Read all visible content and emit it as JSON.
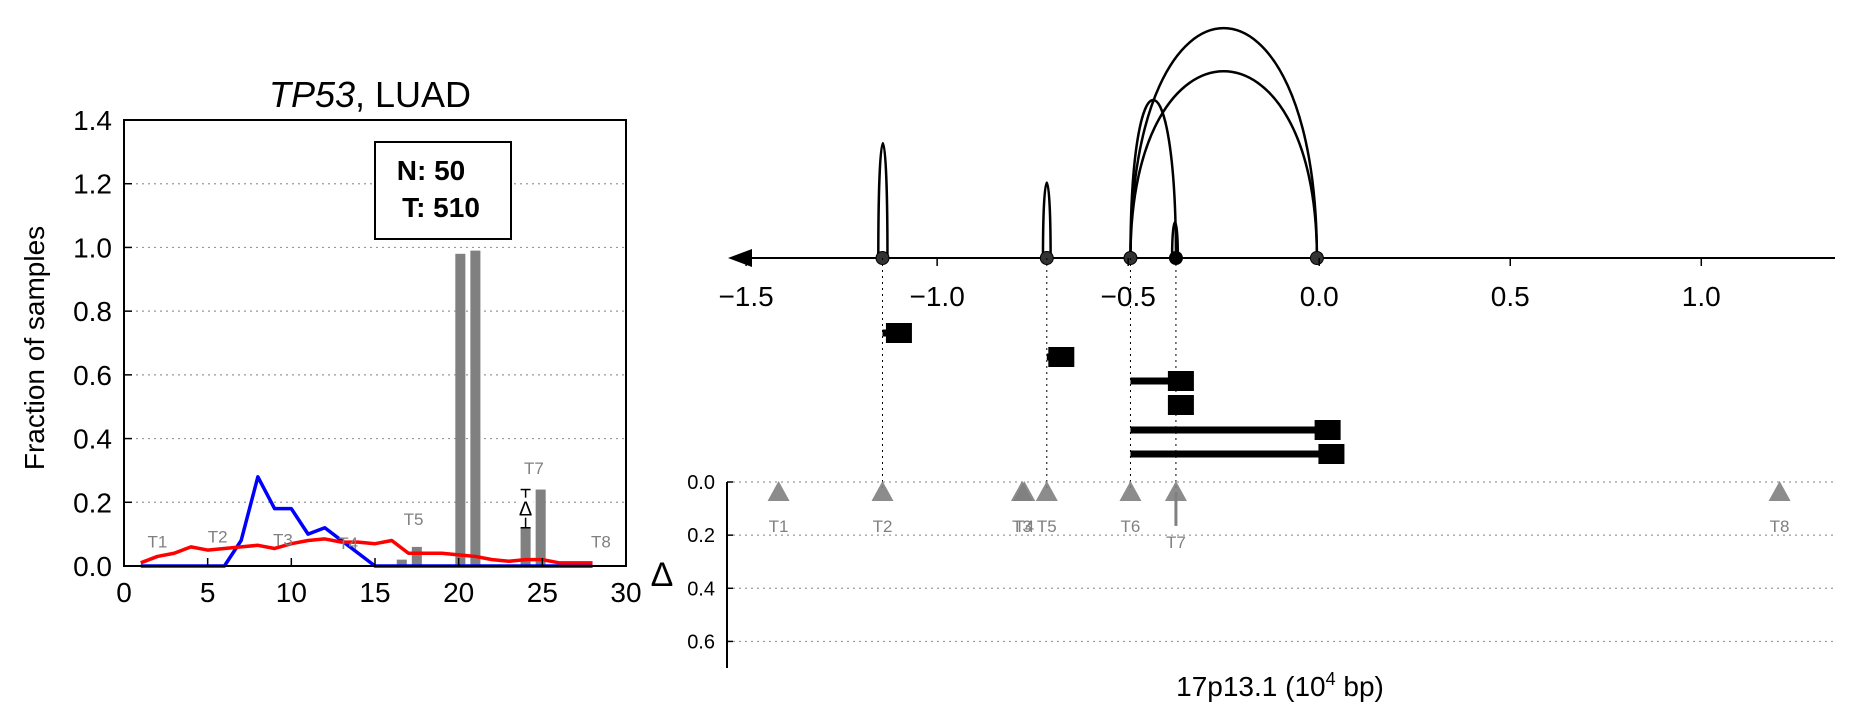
{
  "colors": {
    "normal_line": "#0000ff",
    "tumor_line": "#ff0000",
    "bar": "#808080",
    "marker": "#808080",
    "axis": "#000000",
    "grid": "#999999"
  },
  "chart_data": [
    {
      "type": "bar",
      "title_gene": "TP53",
      "title_rest": ", LUAD",
      "xlabel": "",
      "ylabel": "Fraction of samples",
      "xlim": [
        0,
        30
      ],
      "ylim": [
        0,
        1.4
      ],
      "xticks": [
        0,
        5,
        10,
        15,
        20,
        25,
        30
      ],
      "yticks": [
        "0.0",
        "0.2",
        "0.4",
        "0.6",
        "0.8",
        "1.0",
        "1.2",
        "1.4"
      ],
      "grid": "y",
      "legend_box": [
        "N: 50",
        "T: 510"
      ],
      "bars": [
        {
          "x": 16.6,
          "value": 0.02
        },
        {
          "x": 17.5,
          "value": 0.06
        },
        {
          "x": 20.1,
          "value": 0.98
        },
        {
          "x": 21.0,
          "value": 0.99
        },
        {
          "x": 24.0,
          "value": 0.12
        },
        {
          "x": 24.9,
          "value": 0.24
        }
      ],
      "series": [
        {
          "name": "N",
          "x": [
            1,
            2,
            3,
            4,
            5,
            6,
            7,
            8,
            9,
            10,
            11,
            12,
            13,
            14,
            15,
            16,
            17,
            18,
            19,
            20,
            21,
            22,
            23,
            24,
            25,
            26,
            27,
            28
          ],
          "values": [
            0,
            0,
            0,
            0,
            0,
            0,
            0.08,
            0.28,
            0.18,
            0.18,
            0.1,
            0.12,
            0.08,
            0.04,
            0,
            0,
            0,
            0,
            0,
            0,
            0,
            0,
            0,
            0,
            0,
            0,
            0,
            0
          ]
        },
        {
          "name": "T",
          "x": [
            1,
            2,
            3,
            4,
            5,
            6,
            7,
            8,
            9,
            10,
            11,
            12,
            13,
            14,
            15,
            16,
            17,
            18,
            19,
            20,
            21,
            22,
            23,
            24,
            25,
            26,
            27,
            28
          ],
          "values": [
            0.01,
            0.03,
            0.04,
            0.06,
            0.05,
            0.055,
            0.06,
            0.065,
            0.055,
            0.07,
            0.08,
            0.085,
            0.075,
            0.075,
            0.07,
            0.08,
            0.04,
            0.04,
            0.04,
            0.035,
            0.03,
            0.02,
            0.015,
            0.02,
            0.02,
            0.01,
            0.01,
            0.01
          ]
        }
      ],
      "annotations": [
        {
          "label": "T1",
          "x": 2,
          "y": 0.04
        },
        {
          "label": "T2",
          "x": 5.6,
          "y": 0.055
        },
        {
          "label": "T3",
          "x": 9.5,
          "y": 0.045
        },
        {
          "label": "T4",
          "x": 13.4,
          "y": 0.035
        },
        {
          "label": "T5",
          "x": 17.3,
          "y": 0.11
        },
        {
          "label": "T7",
          "x": 24.5,
          "y": 0.27
        },
        {
          "label": "T8",
          "x": 28.5,
          "y": 0.04
        }
      ],
      "delta_marker": {
        "label": "Δ",
        "x": 24.0,
        "y": 0.18,
        "err_low": 0.12,
        "err_high": 0.24
      }
    },
    {
      "type": "arc",
      "xlabel_prefix": "17p13.1 (10",
      "xlabel_exp": "4",
      "xlabel_suffix": " bp)",
      "xlim": [
        -1.55,
        1.35
      ],
      "xticks": [
        "−1.5",
        "−1.0",
        "−0.5",
        "0.0",
        "0.5",
        "1.0"
      ],
      "xtick_values": [
        -1.5,
        -1.0,
        -0.5,
        0.0,
        0.5,
        1.0
      ],
      "junction_nodes": [
        -1.143,
        -0.713,
        -0.494,
        -0.375,
        -0.006
      ],
      "arcs": [
        {
          "from": -1.154,
          "to": -1.13,
          "height": 0.32
        },
        {
          "from": -0.723,
          "to": -0.703,
          "height": 0.21
        },
        {
          "from": -0.494,
          "to": -0.375,
          "height": 0.44
        },
        {
          "from": -0.494,
          "to": -0.006,
          "height": 0.64
        },
        {
          "from": -0.494,
          "to": -0.006,
          "height": 0.52
        },
        {
          "from": -0.385,
          "to": -0.37,
          "height": 0.1
        }
      ],
      "transcripts": [
        {
          "start": -1.143,
          "end": -1.115,
          "box": -1.1
        },
        {
          "start": -0.713,
          "end": -0.69,
          "box": -0.675
        },
        {
          "start": -0.494,
          "end": -0.375,
          "box": -0.362
        },
        {
          "start": -0.375,
          "end": -0.375,
          "box": -0.362
        },
        {
          "start": -0.494,
          "end": 0.0,
          "box": 0.022
        },
        {
          "start": -0.494,
          "end": 0.01,
          "box": 0.032
        }
      ],
      "delta_label": "Δ",
      "delta_yticks": [
        "0.0",
        "0.2",
        "0.4",
        "0.6"
      ],
      "delta_ylim": [
        0,
        0.7
      ],
      "markers": [
        {
          "label": "T1",
          "x": -1.415,
          "delta": 0.0
        },
        {
          "label": "T2",
          "x": -1.143,
          "delta": 0.0
        },
        {
          "label": "T3",
          "x": -0.778,
          "delta": 0.0
        },
        {
          "label": "T4",
          "x": -0.772,
          "delta": 0.0
        },
        {
          "label": "T5",
          "x": -0.713,
          "delta": 0.0
        },
        {
          "label": "T6",
          "x": -0.494,
          "delta": 0.0
        },
        {
          "label": "T7",
          "x": -0.375,
          "delta": 0.12
        },
        {
          "label": "T8",
          "x": 1.205,
          "delta": 0.0
        }
      ]
    }
  ]
}
